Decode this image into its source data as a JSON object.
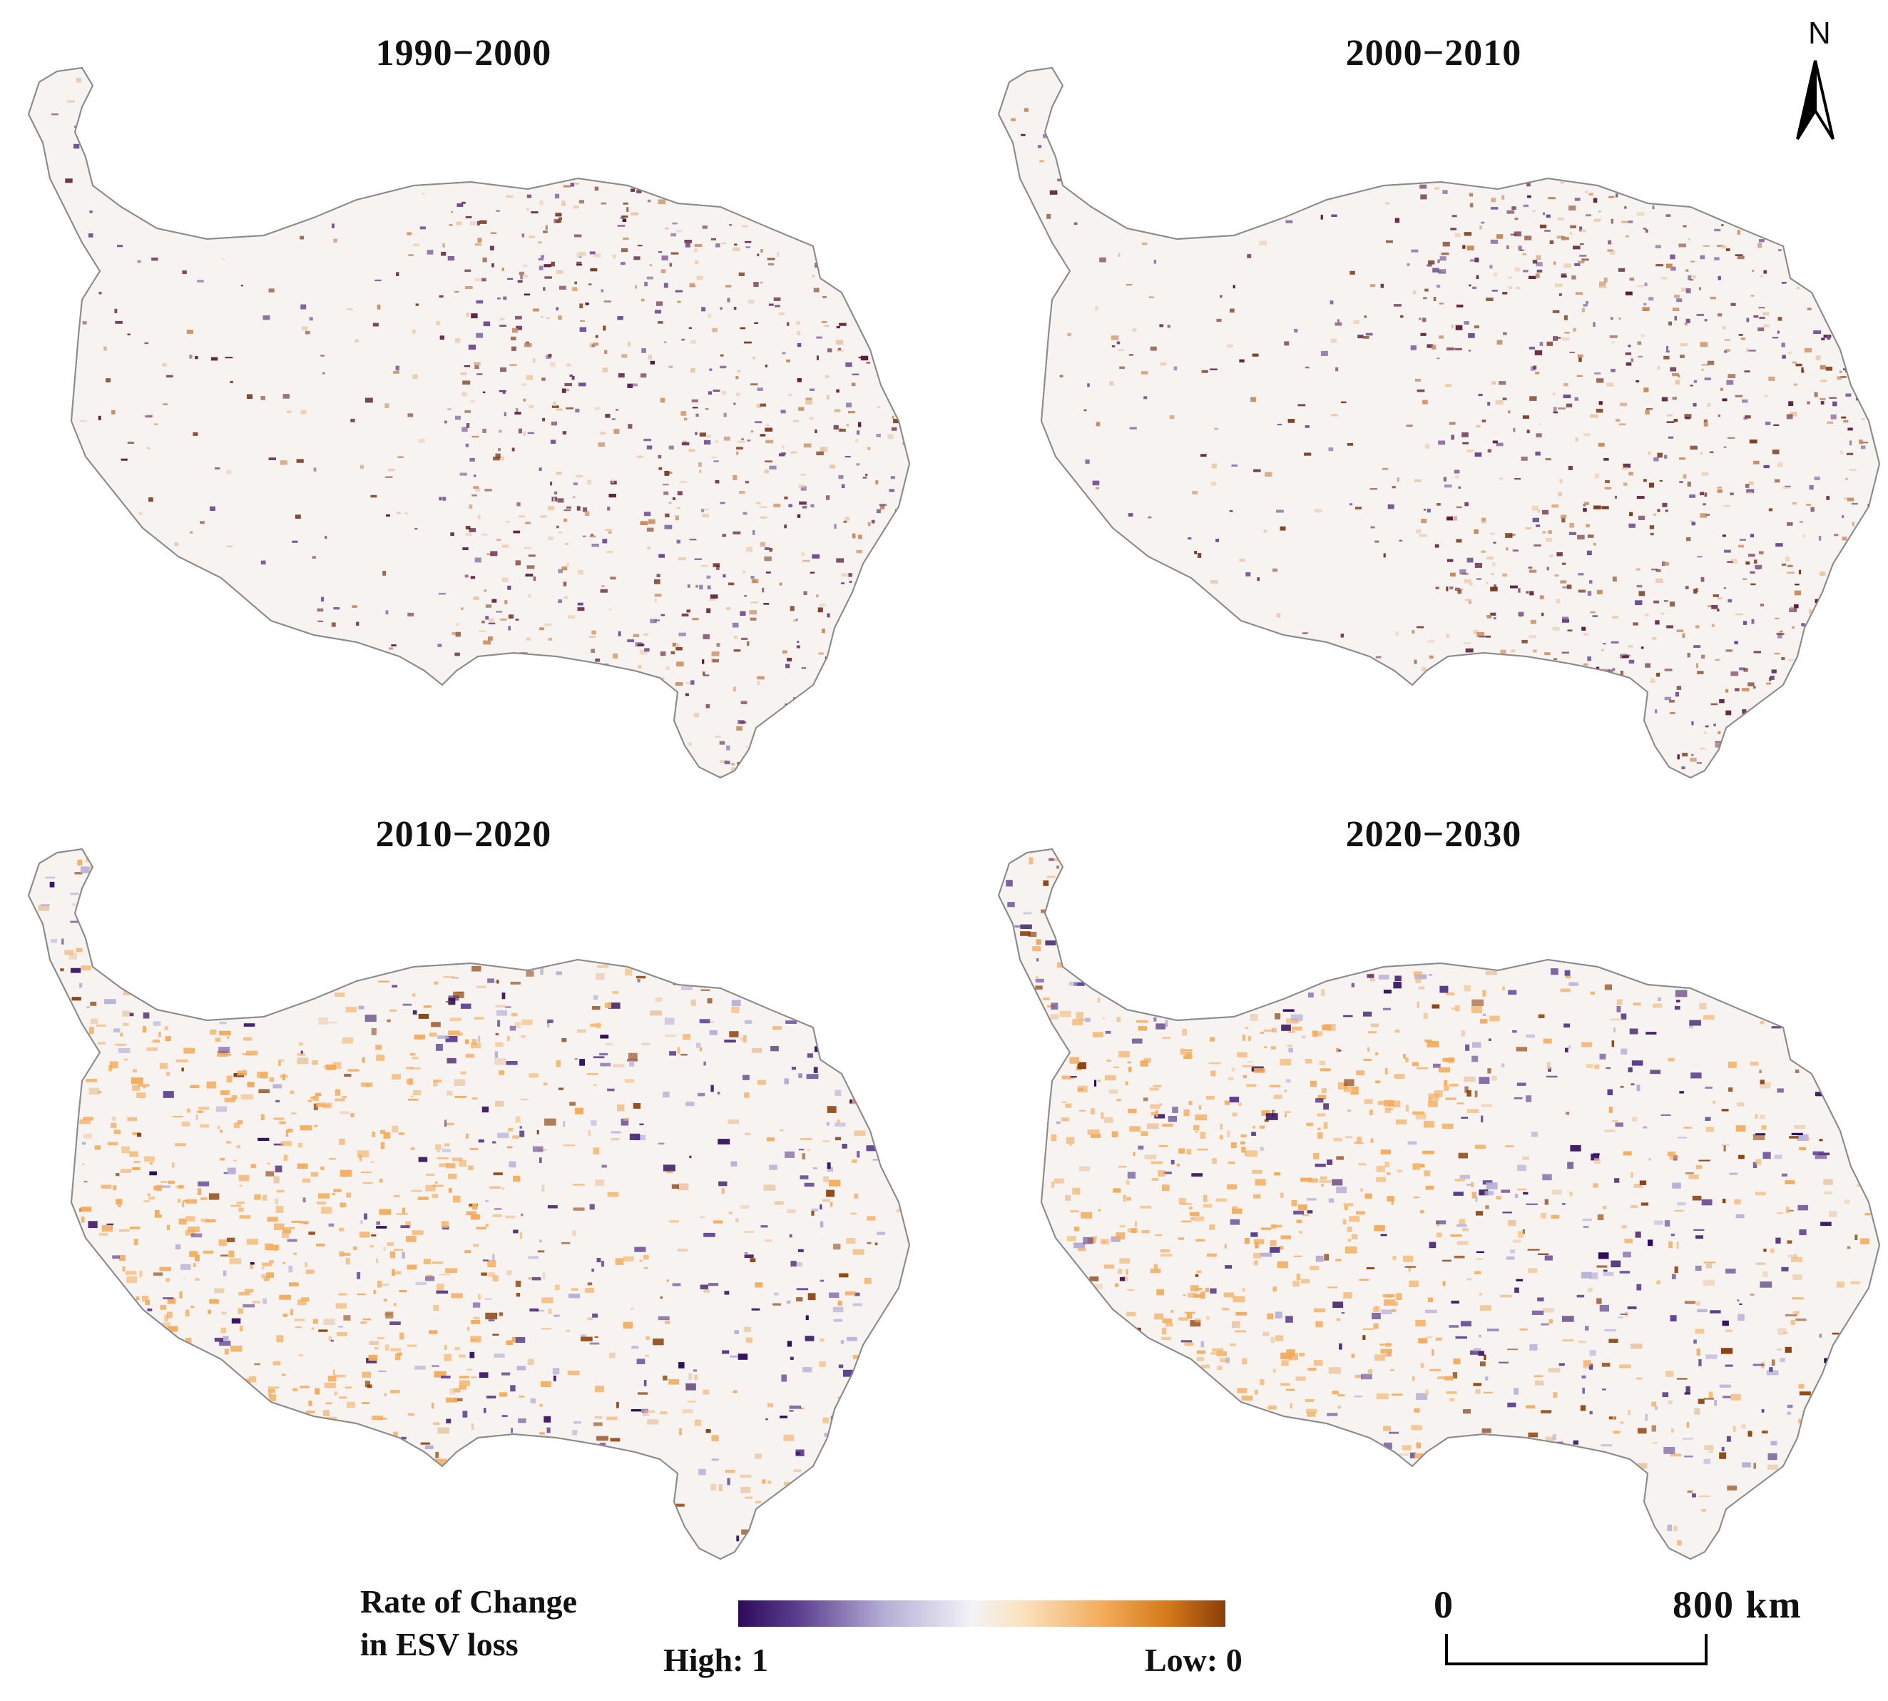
{
  "panels": [
    {
      "title": "1990−2000"
    },
    {
      "title": "2000−2010"
    },
    {
      "title": "2010−2020"
    },
    {
      "title": "2020−2030"
    }
  ],
  "north_arrow": {
    "label": "N",
    "icon": "north-arrow-icon"
  },
  "legend": {
    "title_line1": "Rate of Change",
    "title_line2": "in ESV loss",
    "high_label": "High: 1",
    "low_label": "Low: 0",
    "colors": [
      "#2d0a5a",
      "#5a3d8f",
      "#b5aed6",
      "#f3f2f7",
      "#fbe3c2",
      "#f3ab5a",
      "#d67a1c",
      "#8a3e08"
    ]
  },
  "scale_bar": {
    "min_label": "0",
    "max_label": "800 km"
  }
}
